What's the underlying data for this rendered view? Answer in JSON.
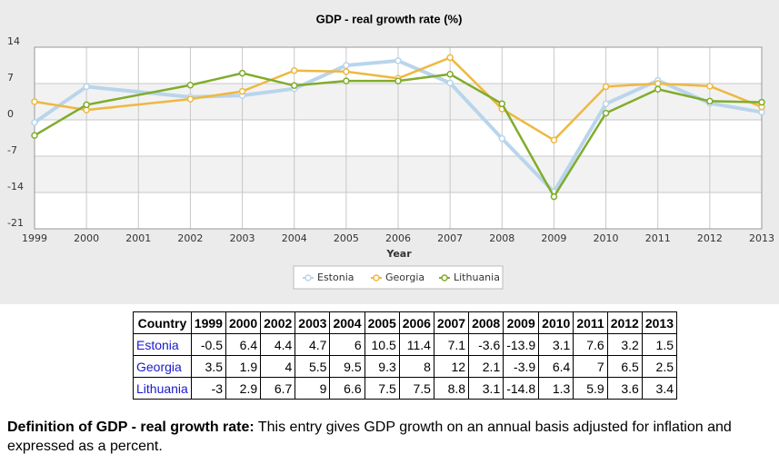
{
  "chart_data": {
    "type": "line",
    "title": "GDP - real growth rate (%)",
    "xlabel": "Year",
    "x": [
      1999,
      2000,
      2002,
      2003,
      2004,
      2005,
      2006,
      2007,
      2008,
      2009,
      2010,
      2011,
      2012,
      2013
    ],
    "xlim": [
      1999,
      2013
    ],
    "xticks": [
      1999,
      2000,
      2001,
      2002,
      2003,
      2004,
      2005,
      2006,
      2007,
      2008,
      2009,
      2010,
      2011,
      2012,
      2013
    ],
    "ylim": [
      -21,
      14
    ],
    "yticks": [
      -21,
      -14,
      -7,
      0,
      7,
      14
    ],
    "grid": true,
    "legend": "bottom",
    "series": [
      {
        "name": "Estonia",
        "color": "#b9d5ec",
        "values": [
          -0.5,
          6.4,
          4.4,
          4.7,
          6,
          10.5,
          11.4,
          7.1,
          -3.6,
          -13.9,
          3.1,
          7.6,
          3.2,
          1.5
        ]
      },
      {
        "name": "Georgia",
        "color": "#eeb840",
        "values": [
          3.5,
          1.9,
          4,
          5.5,
          9.5,
          9.3,
          8,
          12,
          2.1,
          -3.9,
          6.4,
          7,
          6.5,
          2.5
        ]
      },
      {
        "name": "Lithuania",
        "color": "#80ac2c",
        "values": [
          -3,
          2.9,
          6.7,
          9,
          6.6,
          7.5,
          7.5,
          8.8,
          3.1,
          -14.8,
          1.3,
          5.9,
          3.6,
          3.4
        ]
      }
    ]
  },
  "table": {
    "header": [
      "Country",
      "1999",
      "2000",
      "2002",
      "2003",
      "2004",
      "2005",
      "2006",
      "2007",
      "2008",
      "2009",
      "2010",
      "2011",
      "2012",
      "2013"
    ],
    "rows": [
      [
        "Estonia",
        -0.5,
        6.4,
        4.4,
        4.7,
        6,
        10.5,
        11.4,
        7.1,
        -3.6,
        -13.9,
        3.1,
        7.6,
        3.2,
        1.5
      ],
      [
        "Georgia",
        3.5,
        1.9,
        4,
        5.5,
        9.5,
        9.3,
        8,
        12,
        2.1,
        -3.9,
        6.4,
        7,
        6.5,
        2.5
      ],
      [
        "Lithuania",
        -3,
        2.9,
        6.7,
        9,
        6.6,
        7.5,
        7.5,
        8.8,
        3.1,
        -14.8,
        1.3,
        5.9,
        3.6,
        3.4
      ]
    ]
  },
  "definition": {
    "term": "Definition of GDP - real growth rate:",
    "text": "This entry gives GDP growth on an annual basis adjusted for inflation and expressed as a percent."
  }
}
